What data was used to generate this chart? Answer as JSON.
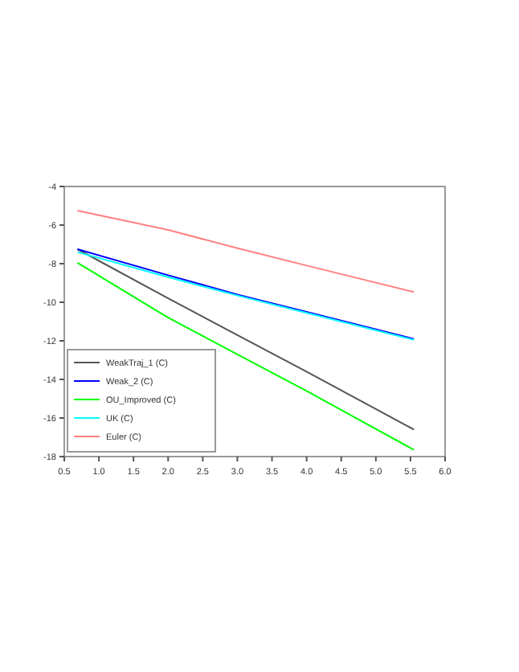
{
  "chart_data": {
    "type": "line",
    "xlim": [
      0.5,
      6.0
    ],
    "ylim": [
      -18,
      -4
    ],
    "xticks": [
      {
        "value": 0.5,
        "label": "0.5"
      },
      {
        "value": 1,
        "label": "1.0"
      },
      {
        "value": 1.5,
        "label": "1.5"
      },
      {
        "value": 2,
        "label": "2.0"
      },
      {
        "value": 2.5,
        "label": "2.5"
      },
      {
        "value": 3,
        "label": "3.0"
      },
      {
        "value": 3.5,
        "label": "3.5"
      },
      {
        "value": 4,
        "label": "4.0"
      },
      {
        "value": 4.5,
        "label": "4.5"
      },
      {
        "value": 5,
        "label": "5.0"
      },
      {
        "value": 5.5,
        "label": "5.5"
      },
      {
        "value": 6,
        "label": "6.0"
      }
    ],
    "yticks": [
      -18,
      -16,
      -14,
      -12,
      -10,
      -8,
      -6,
      -4
    ],
    "x": [
      0.69,
      2.0,
      3.0,
      4.0,
      5.55
    ],
    "series": [
      {
        "name": "WeakTraj_1 (C)",
        "color": "#555555",
        "values": [
          -7.25,
          -9.8,
          -11.7,
          -13.6,
          -16.6
        ]
      },
      {
        "name": "Weak_2 (C)",
        "color": "#0000ff",
        "values": [
          -7.25,
          -8.6,
          -9.6,
          -10.5,
          -11.9
        ]
      },
      {
        "name": "OU_Improved (C)",
        "color": "#00ff00",
        "values": [
          -7.95,
          -10.8,
          -12.7,
          -14.6,
          -17.65
        ]
      },
      {
        "name": "UK (C)",
        "color": "#00ffff",
        "values": [
          -7.4,
          -8.7,
          -9.65,
          -10.55,
          -11.95
        ]
      },
      {
        "name": "Euler (C)",
        "color": "#ff8080",
        "values": [
          -5.25,
          -6.25,
          -7.2,
          -8.1,
          -9.47
        ]
      }
    ],
    "legend": "bottom left",
    "grid": false
  }
}
